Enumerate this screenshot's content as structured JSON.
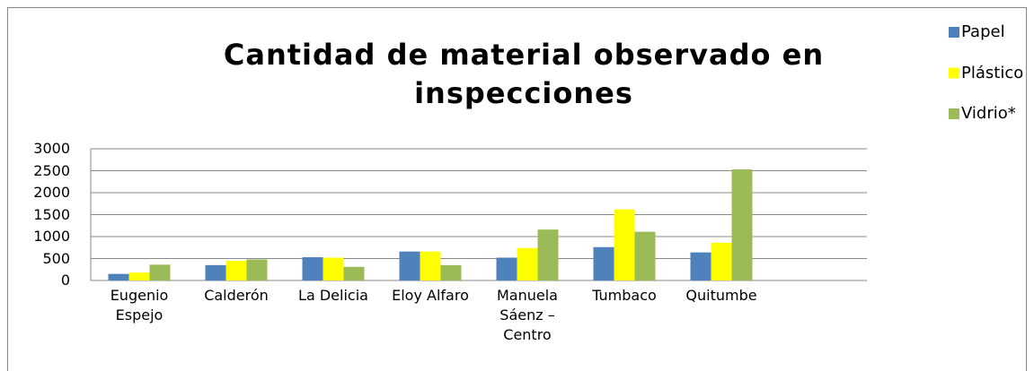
{
  "chart_data": {
    "type": "bar",
    "title": "Cantidad de material observado en inspecciones",
    "categories": [
      "Eugenio Espejo",
      "Calderón",
      "La Delicia",
      "Eloy Alfaro",
      "Manuela Sáenz – Centro",
      "Tumbaco",
      "Quitumbe",
      null
    ],
    "series": [
      {
        "name": "Papel",
        "color": "#4f81bd",
        "values": [
          150,
          350,
          530,
          660,
          520,
          760,
          640,
          null
        ]
      },
      {
        "name": "Plástico",
        "color": "#ffff00",
        "values": [
          180,
          450,
          520,
          660,
          740,
          1620,
          860,
          null
        ]
      },
      {
        "name": "Vidrio*",
        "color": "#9bbb59",
        "values": [
          360,
          480,
          310,
          350,
          1160,
          1110,
          2530,
          null
        ]
      }
    ],
    "ylim": [
      0,
      3000
    ],
    "yticks": [
      0,
      500,
      1000,
      1500,
      2000,
      2500,
      3000
    ],
    "grid": true,
    "legend": "top-right"
  }
}
